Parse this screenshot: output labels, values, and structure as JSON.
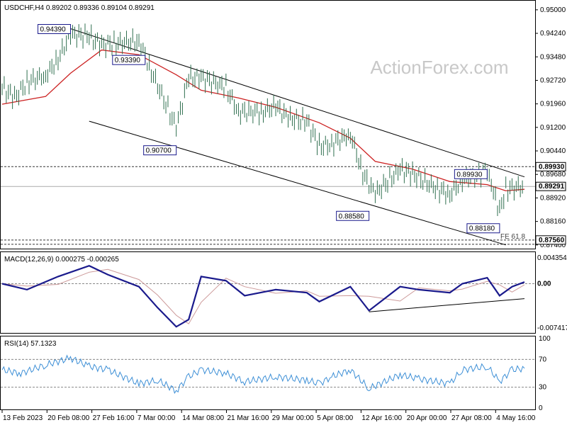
{
  "header": {
    "symbol_line": "USDCHF,H4  0.89202 0.89336 0.89104 0.89291"
  },
  "watermark": "ActionForex.com",
  "colors": {
    "price": "#2f6f4f",
    "ma": "#cc2222",
    "macd": "#1a1a8c",
    "signal": "#cc9999",
    "rsi": "#3d8fd6",
    "frame": "#000000",
    "grid_dash": "#333333"
  },
  "main_panel": {
    "y_axis_labels": [
      "0.95000",
      "0.94240",
      "0.93480",
      "0.92720",
      "0.91960",
      "0.91200",
      "0.90440",
      "0.89680",
      "0.88920",
      "0.88160",
      "0.87400"
    ],
    "highlight_labels": [
      {
        "text": "0.89930",
        "value": 0.8993,
        "style": "dark"
      },
      {
        "text": "0.89291",
        "value": 0.89291,
        "style": "price"
      },
      {
        "text": "0.87560",
        "value": 0.8756,
        "style": "dark"
      }
    ],
    "annotations": [
      {
        "text": "0.94390",
        "value": 0.9439,
        "date": "24 Feb 2023"
      },
      {
        "text": "0.93390",
        "value": 0.9339,
        "date": "8 Mar 2023"
      },
      {
        "text": "0.90700",
        "value": 0.907,
        "date": "13 Mar 2023"
      },
      {
        "text": "0.88580",
        "value": 0.8858,
        "date": "13 Apr 2023"
      },
      {
        "text": "0.89930",
        "value": 0.8993,
        "date": "2 May 2023"
      },
      {
        "text": "0.88180",
        "value": 0.8818,
        "date": "4 May 2023"
      }
    ],
    "fe_label": "FE 61.8"
  },
  "macd_panel": {
    "title": "MACD(12,26,9) 0.000275 -0.000265",
    "y_axis_labels": [
      "0.004354",
      "0.00",
      "-0.007417"
    ]
  },
  "rsi_panel": {
    "title": "RSI(14) 57.1323",
    "y_axis_labels": [
      "100",
      "70",
      "30",
      "0"
    ]
  },
  "x_axis_labels": [
    "13 Feb 2023",
    "20 Feb 08:00",
    "27 Feb 16:00",
    "7 Mar 00:00",
    "14 Mar 08:00",
    "21 Mar 16:00",
    "29 Mar 00:00",
    "5 Apr 08:00",
    "12 Apr 16:00",
    "20 Apr 00:00",
    "27 Apr 08:00",
    "4 May 16:00"
  ],
  "chart_data": {
    "type": "line",
    "symbol": "USDCHF",
    "timeframe": "H4",
    "ohlc_last": {
      "open": 0.89202,
      "high": 0.89336,
      "low": 0.89104,
      "close": 0.89291
    },
    "ylim": [
      0.8735,
      0.9518
    ],
    "price_close": [
      [
        "13 Feb 2023",
        0.925
      ],
      [
        "15 Feb 2023",
        0.9215
      ],
      [
        "17 Feb 2023",
        0.9265
      ],
      [
        "20 Feb 2023",
        0.929
      ],
      [
        "22 Feb 2023",
        0.934
      ],
      [
        "24 Feb 2023",
        0.942
      ],
      [
        "27 Feb 2023",
        0.9415
      ],
      [
        "1 Mar 2023",
        0.9385
      ],
      [
        "3 Mar 2023",
        0.939
      ],
      [
        "7 Mar 2023",
        0.94
      ],
      [
        "9 Mar 2023",
        0.93
      ],
      [
        "13 Mar 2023",
        0.912
      ],
      [
        "15 Mar 2023",
        0.928
      ],
      [
        "17 Mar 2023",
        0.928
      ],
      [
        "21 Mar 2023",
        0.925
      ],
      [
        "23 Mar 2023",
        0.917
      ],
      [
        "27 Mar 2023",
        0.917
      ],
      [
        "29 Mar 2023",
        0.919
      ],
      [
        "31 Mar 2023",
        0.915
      ],
      [
        "3 Apr 2023",
        0.914
      ],
      [
        "5 Apr 2023",
        0.906
      ],
      [
        "7 Apr 2023",
        0.9065
      ],
      [
        "10 Apr 2023",
        0.91
      ],
      [
        "12 Apr 2023",
        0.897
      ],
      [
        "14 Apr 2023",
        0.8905
      ],
      [
        "18 Apr 2023",
        0.8985
      ],
      [
        "20 Apr 2023",
        0.897
      ],
      [
        "24 Apr 2023",
        0.892
      ],
      [
        "26 Apr 2023",
        0.8905
      ],
      [
        "28 Apr 2023",
        0.895
      ],
      [
        "2 May 2023",
        0.8975
      ],
      [
        "3 May 2023",
        0.891
      ],
      [
        "4 May 2023",
        0.885
      ],
      [
        "5 May 2023",
        0.892
      ],
      [
        "8 May 2023",
        0.8929
      ]
    ],
    "moving_average": [
      [
        "13 Feb 2023",
        0.9195
      ],
      [
        "20 Feb 2023",
        0.922
      ],
      [
        "24 Feb 2023",
        0.9295
      ],
      [
        "1 Mar 2023",
        0.937
      ],
      [
        "7 Mar 2023",
        0.9355
      ],
      [
        "13 Mar 2023",
        0.929
      ],
      [
        "17 Mar 2023",
        0.924
      ],
      [
        "23 Mar 2023",
        0.9215
      ],
      [
        "29 Mar 2023",
        0.9185
      ],
      [
        "5 Apr 2023",
        0.9135
      ],
      [
        "10 Apr 2023",
        0.9085
      ],
      [
        "14 Apr 2023",
        0.901
      ],
      [
        "20 Apr 2023",
        0.8985
      ],
      [
        "26 Apr 2023",
        0.8945
      ],
      [
        "2 May 2023",
        0.8935
      ],
      [
        "5 May 2023",
        0.8915
      ],
      [
        "8 May 2023",
        0.892
      ]
    ],
    "channel_upper": [
      [
        "24 Feb 2023",
        0.9439
      ],
      [
        "8 May 2023",
        0.896
      ]
    ],
    "channel_lower": [
      [
        "27 Feb 2023",
        0.914
      ],
      [
        "5 May 2023",
        0.874
      ]
    ],
    "levels": [
      {
        "value": 0.8993,
        "label": "0.89930"
      },
      {
        "value": 0.89291,
        "label": "0.89291"
      },
      {
        "value": 0.8756,
        "label": "0.87560"
      }
    ],
    "macd": {
      "ylim": [
        -0.008,
        0.0048
      ],
      "macd_line": [
        [
          "13 Feb 2023",
          0.0
        ],
        [
          "17 Feb 2023",
          -0.001
        ],
        [
          "22 Feb 2023",
          0.0012
        ],
        [
          "27 Feb 2023",
          0.003
        ],
        [
          "2 Mar 2023",
          0.0015
        ],
        [
          "7 Mar 2023",
          -0.0005
        ],
        [
          "10 Mar 2023",
          -0.004
        ],
        [
          "13 Mar 2023",
          -0.0072
        ],
        [
          "15 Mar 2023",
          -0.006
        ],
        [
          "17 Mar 2023",
          0.0012
        ],
        [
          "21 Mar 2023",
          0.0005
        ],
        [
          "24 Mar 2023",
          -0.002
        ],
        [
          "29 Mar 2023",
          -0.001
        ],
        [
          "3 Apr 2023",
          -0.0015
        ],
        [
          "5 Apr 2023",
          -0.003
        ],
        [
          "10 Apr 2023",
          -0.0005
        ],
        [
          "13 Apr 2023",
          -0.0045
        ],
        [
          "18 Apr 2023",
          -0.0005
        ],
        [
          "21 Apr 2023",
          -0.001
        ],
        [
          "26 Apr 2023",
          -0.0015
        ],
        [
          "28 Apr 2023",
          0.0
        ],
        [
          "2 May 2023",
          0.001
        ],
        [
          "4 May 2023",
          -0.002
        ],
        [
          "6 May 2023",
          -0.0005
        ],
        [
          "8 May 2023",
          0.000275
        ]
      ],
      "trendline": [
        [
          "13 Apr 2023",
          -0.0047
        ],
        [
          "8 May 2023",
          -0.0025
        ]
      ]
    },
    "rsi": {
      "ylim": [
        0,
        100
      ],
      "levels": [
        70,
        30
      ],
      "values": [
        [
          "13 Feb 2023",
          55
        ],
        [
          "16 Feb 2023",
          50
        ],
        [
          "20 Feb 2023",
          62
        ],
        [
          "24 Feb 2023",
          72
        ],
        [
          "27 Feb 2023",
          60
        ],
        [
          "2 Mar 2023",
          55
        ],
        [
          "7 Mar 2023",
          35
        ],
        [
          "10 Mar 2023",
          40
        ],
        [
          "13 Mar 2023",
          25
        ],
        [
          "15 Mar 2023",
          45
        ],
        [
          "17 Mar 2023",
          55
        ],
        [
          "21 Mar 2023",
          50
        ],
        [
          "24 Mar 2023",
          38
        ],
        [
          "29 Mar 2023",
          45
        ],
        [
          "3 Apr 2023",
          40
        ],
        [
          "5 Apr 2023",
          35
        ],
        [
          "7 Apr 2023",
          45
        ],
        [
          "10 Apr 2023",
          55
        ],
        [
          "13 Apr 2023",
          28
        ],
        [
          "18 Apr 2023",
          48
        ],
        [
          "21 Apr 2023",
          42
        ],
        [
          "26 Apr 2023",
          35
        ],
        [
          "28 Apr 2023",
          55
        ],
        [
          "2 May 2023",
          60
        ],
        [
          "4 May 2023",
          38
        ],
        [
          "6 May 2023",
          55
        ],
        [
          "8 May 2023",
          57.1323
        ]
      ]
    }
  }
}
